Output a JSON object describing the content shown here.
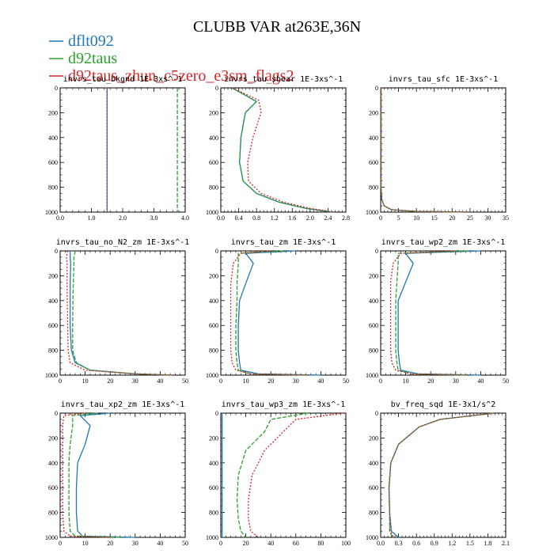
{
  "figure": {
    "title": "CLUBB VAR at263E,36N",
    "legend": [
      {
        "name": "dflt092",
        "color": "#1f77b4"
      },
      {
        "name": "d92taus",
        "color": "#2ca02c"
      },
      {
        "name": "d92taus_zhun_c5zero_e3sm_flags2",
        "color": "#d62728"
      }
    ]
  },
  "chart_data": [
    {
      "type": "line",
      "title": "invrs_tau_bkgnd   1E-3xs^-1",
      "xlim": [
        0,
        4
      ],
      "ylim": [
        1000,
        0
      ],
      "xticks": [
        "0.0",
        "1.0",
        "2.0",
        "3.0",
        "4.0"
      ],
      "yticks": [
        "0",
        "200",
        "400",
        "600",
        "800",
        "1000"
      ],
      "series": [
        {
          "name": "dflt092",
          "color": "#1f77b4",
          "x": [
            1.5,
            1.5
          ],
          "y": [
            0,
            1000
          ]
        },
        {
          "name": "d92taus",
          "color": "#2ca02c",
          "x": [
            3.75,
            3.75
          ],
          "y": [
            0,
            1000
          ]
        },
        {
          "name": "d92taus_zhun_c5zero_e3sm_flags2",
          "color": "#d62728",
          "x": [
            1.5,
            1.5
          ],
          "y": [
            0,
            1000
          ]
        }
      ]
    },
    {
      "type": "line",
      "title": "invrs_tau_shear   1E-3xs^-1",
      "xlim": [
        0,
        2.8
      ],
      "ylim": [
        1000,
        0
      ],
      "xticks": [
        "0.0",
        "0.4",
        "0.8",
        "1.2",
        "1.6",
        "2.0",
        "2.4",
        "2.8"
      ],
      "yticks": [
        "0",
        "200",
        "400",
        "600",
        "800",
        "1000"
      ],
      "series": [
        {
          "name": "dflt092",
          "color": "#1f77b4",
          "x": [
            0.25,
            0.5,
            0.8,
            0.55,
            0.45,
            0.42,
            0.5,
            0.8,
            1.3,
            1.9,
            2.5
          ],
          "y": [
            0,
            50,
            110,
            200,
            400,
            600,
            750,
            850,
            920,
            970,
            1000
          ]
        },
        {
          "name": "d92taus",
          "color": "#2ca02c",
          "x": [
            0.25,
            0.5,
            0.8,
            0.55,
            0.45,
            0.42,
            0.5,
            0.8,
            1.3,
            1.9,
            2.5
          ],
          "y": [
            0,
            50,
            110,
            200,
            400,
            600,
            750,
            850,
            920,
            970,
            1000
          ]
        },
        {
          "name": "d92taus_zhun_c5zero_e3sm_flags2",
          "color": "#d62728",
          "x": [
            0.25,
            0.55,
            0.85,
            0.9,
            0.72,
            0.6,
            0.62,
            0.9,
            1.4,
            2.0,
            2.55
          ],
          "y": [
            0,
            50,
            100,
            200,
            400,
            600,
            750,
            850,
            920,
            970,
            1000
          ]
        }
      ]
    },
    {
      "type": "line",
      "title": "invrs_tau_sfc   1E-3xs^-1",
      "xlim": [
        0,
        35
      ],
      "ylim": [
        1000,
        0
      ],
      "xticks": [
        "0",
        "5",
        "10",
        "15",
        "20",
        "25",
        "30",
        "35"
      ],
      "yticks": [
        "0",
        "200",
        "400",
        "600",
        "800",
        "1000"
      ],
      "series": [
        {
          "name": "dflt092",
          "color": "#1f77b4",
          "x": [
            0.1,
            0.1,
            0.3,
            1,
            3,
            10,
            25
          ],
          "y": [
            0,
            800,
            900,
            950,
            980,
            995,
            1000
          ]
        },
        {
          "name": "d92taus",
          "color": "#2ca02c",
          "x": [
            0.1,
            0.1,
            0.3,
            1,
            3,
            10,
            25
          ],
          "y": [
            0,
            800,
            900,
            950,
            980,
            995,
            1000
          ]
        },
        {
          "name": "d92taus_zhun_c5zero_e3sm_flags2",
          "color": "#d62728",
          "x": [
            0.1,
            0.1,
            0.3,
            1,
            3,
            10,
            25
          ],
          "y": [
            0,
            800,
            900,
            950,
            980,
            995,
            1000
          ]
        }
      ]
    },
    {
      "type": "line",
      "title": "invrs_tau_no_N2_zm   1E-3xs^-1",
      "xlim": [
        0,
        50
      ],
      "ylim": [
        1000,
        0
      ],
      "xticks": [
        "0",
        "10",
        "20",
        "30",
        "40",
        "50"
      ],
      "yticks": [
        "0",
        "200",
        "400",
        "600",
        "800",
        "1000"
      ],
      "series": [
        {
          "name": "dflt092",
          "color": "#1f77b4",
          "x": [
            4,
            4,
            4.2,
            4,
            4,
            4.5,
            6,
            12,
            30,
            45
          ],
          "y": [
            0,
            50,
            100,
            300,
            600,
            800,
            900,
            960,
            990,
            1000
          ]
        },
        {
          "name": "d92taus",
          "color": "#2ca02c",
          "x": [
            6,
            5.5,
            5.5,
            5.2,
            5,
            5,
            6.5,
            12,
            30,
            45
          ],
          "y": [
            0,
            50,
            100,
            300,
            600,
            800,
            900,
            960,
            990,
            1000
          ]
        },
        {
          "name": "d92taus_zhun_c5zero_e3sm_flags2",
          "color": "#d62728",
          "x": [
            3,
            2.5,
            2.8,
            2.8,
            3,
            3.2,
            4,
            10,
            30,
            45
          ],
          "y": [
            0,
            50,
            100,
            300,
            600,
            800,
            900,
            960,
            990,
            1000
          ]
        }
      ]
    },
    {
      "type": "line",
      "title": "invrs_tau_zm   1E-3xs^-1",
      "xlim": [
        0,
        50
      ],
      "ylim": [
        1000,
        0
      ],
      "xticks": [
        "0",
        "10",
        "20",
        "30",
        "40",
        "50"
      ],
      "yticks": [
        "0",
        "200",
        "400",
        "600",
        "800",
        "1000"
      ],
      "series": [
        {
          "name": "dflt092",
          "color": "#1f77b4",
          "x": [
            30,
            10,
            13,
            10,
            7.5,
            7,
            7,
            7.5,
            8,
            15,
            40
          ],
          "y": [
            0,
            20,
            100,
            260,
            400,
            600,
            800,
            900,
            960,
            990,
            1000
          ]
        },
        {
          "name": "d92taus",
          "color": "#2ca02c",
          "x": [
            25,
            7,
            7,
            6.5,
            6.5,
            6,
            6,
            6.5,
            7,
            12,
            35
          ],
          "y": [
            0,
            20,
            100,
            260,
            400,
            600,
            800,
            900,
            960,
            990,
            1000
          ]
        },
        {
          "name": "d92taus_zhun_c5zero_e3sm_flags2",
          "color": "#d62728",
          "x": [
            20,
            8,
            5,
            4,
            4,
            4,
            4,
            4.5,
            6,
            12,
            35
          ],
          "y": [
            0,
            20,
            100,
            260,
            400,
            600,
            800,
            900,
            960,
            990,
            1000
          ]
        }
      ]
    },
    {
      "type": "line",
      "title": "invrs_tau_wp2_zm   1E-3xs^-1",
      "xlim": [
        0,
        50
      ],
      "ylim": [
        1000,
        0
      ],
      "xticks": [
        "0",
        "10",
        "20",
        "30",
        "40",
        "50"
      ],
      "yticks": [
        "0",
        "200",
        "400",
        "600",
        "800",
        "1000"
      ],
      "series": [
        {
          "name": "dflt092",
          "color": "#1f77b4",
          "x": [
            40,
            10,
            13,
            10,
            7,
            7,
            7,
            7.5,
            8,
            15,
            40
          ],
          "y": [
            0,
            20,
            100,
            250,
            400,
            600,
            800,
            900,
            960,
            990,
            1000
          ]
        },
        {
          "name": "d92taus",
          "color": "#2ca02c",
          "x": [
            35,
            7,
            7,
            6.5,
            6,
            6,
            6,
            6.5,
            7,
            12,
            35
          ],
          "y": [
            0,
            20,
            100,
            250,
            400,
            600,
            800,
            900,
            960,
            990,
            1000
          ]
        },
        {
          "name": "d92taus_zhun_c5zero_e3sm_flags2",
          "color": "#d62728",
          "x": [
            30,
            8,
            5,
            4,
            4,
            4,
            4,
            4.5,
            6,
            12,
            35
          ],
          "y": [
            0,
            20,
            100,
            250,
            400,
            600,
            800,
            900,
            960,
            990,
            1000
          ]
        }
      ]
    },
    {
      "type": "line",
      "title": "invrs_tau_xp2_zm   1E-3xs^-1",
      "xlim": [
        0,
        50
      ],
      "ylim": [
        1000,
        0
      ],
      "xticks": [
        "0",
        "10",
        "20",
        "30",
        "40",
        "50"
      ],
      "yticks": [
        "0",
        "200",
        "400",
        "600",
        "800",
        "1000"
      ],
      "series": [
        {
          "name": "dflt092",
          "color": "#1f77b4",
          "x": [
            20,
            8,
            12,
            10,
            7,
            6.5,
            6.5,
            7,
            9,
            30
          ],
          "y": [
            0,
            20,
            100,
            250,
            400,
            600,
            800,
            950,
            990,
            1000
          ]
        },
        {
          "name": "d92taus",
          "color": "#2ca02c",
          "x": [
            15,
            5,
            5,
            4,
            3.5,
            3.5,
            3.5,
            4,
            6,
            25
          ],
          "y": [
            0,
            20,
            100,
            250,
            400,
            600,
            800,
            950,
            990,
            1000
          ]
        },
        {
          "name": "d92taus_zhun_c5zero_e3sm_flags2",
          "color": "#d62728",
          "x": [
            10,
            1.5,
            1,
            1,
            1,
            1,
            1,
            1.5,
            4,
            20
          ],
          "y": [
            0,
            20,
            100,
            250,
            400,
            600,
            800,
            950,
            990,
            1000
          ]
        }
      ]
    },
    {
      "type": "line",
      "title": "invrs_tau_wp3_zm   1E-3xs^-1",
      "xlim": [
        0,
        100
      ],
      "ylim": [
        1000,
        0
      ],
      "xticks": [
        "0",
        "20",
        "40",
        "60",
        "80",
        "100"
      ],
      "yticks": [
        "0",
        "200",
        "400",
        "600",
        "800",
        "1000"
      ],
      "series": [
        {
          "name": "dflt092",
          "color": "#1f77b4",
          "x": [
            1,
            1,
            1,
            1,
            1,
            1,
            1
          ],
          "y": [
            0,
            200,
            400,
            600,
            800,
            950,
            1000
          ]
        },
        {
          "name": "d92taus",
          "color": "#2ca02c",
          "x": [
            70,
            40,
            35,
            20,
            14,
            13,
            14,
            16,
            20
          ],
          "y": [
            0,
            50,
            150,
            300,
            500,
            700,
            850,
            950,
            1000
          ]
        },
        {
          "name": "d92taus_zhun_c5zero_e3sm_flags2",
          "color": "#d62728",
          "x": [
            98,
            60,
            50,
            35,
            25,
            22,
            22,
            24,
            30
          ],
          "y": [
            0,
            50,
            150,
            300,
            500,
            700,
            850,
            950,
            1000
          ]
        }
      ]
    },
    {
      "type": "line",
      "title": "bv_freq_sqd   1E-3x1/s^2",
      "xlim": [
        0,
        2.1
      ],
      "ylim": [
        1000,
        0
      ],
      "xticks": [
        "0.0",
        "0.3",
        "0.6",
        "0.9",
        "1.2",
        "1.5",
        "1.8",
        "2.1"
      ],
      "yticks": [
        "0",
        "200",
        "400",
        "600",
        "800",
        "1000"
      ],
      "series": [
        {
          "name": "dflt092",
          "color": "#1f77b4",
          "x": [
            1.9,
            1.0,
            0.65,
            0.3,
            0.17,
            0.14,
            0.15,
            0.18,
            0.3
          ],
          "y": [
            0,
            50,
            110,
            250,
            400,
            600,
            800,
            950,
            1000
          ]
        },
        {
          "name": "d92taus",
          "color": "#2ca02c",
          "x": [
            1.9,
            1.0,
            0.65,
            0.3,
            0.17,
            0.14,
            0.15,
            0.15,
            0.2
          ],
          "y": [
            0,
            50,
            110,
            250,
            400,
            600,
            800,
            950,
            1000
          ]
        },
        {
          "name": "d92taus_zhun_c5zero_e3sm_flags2",
          "color": "#d62728",
          "x": [
            1.9,
            1.0,
            0.65,
            0.3,
            0.17,
            0.14,
            0.15,
            0.16,
            0.22
          ],
          "y": [
            0,
            50,
            110,
            250,
            400,
            600,
            800,
            950,
            1000
          ]
        }
      ]
    }
  ]
}
